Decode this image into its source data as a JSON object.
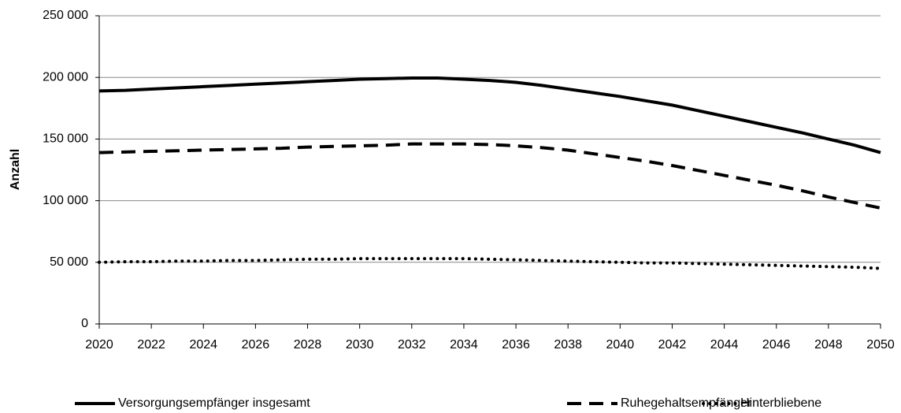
{
  "chart_data": {
    "type": "line",
    "ylabel": "Anzahl",
    "x": [
      2020,
      2021,
      2022,
      2023,
      2024,
      2025,
      2026,
      2027,
      2028,
      2029,
      2030,
      2031,
      2032,
      2033,
      2034,
      2035,
      2036,
      2037,
      2038,
      2039,
      2040,
      2041,
      2042,
      2043,
      2044,
      2045,
      2046,
      2047,
      2048,
      2049,
      2050
    ],
    "series": [
      {
        "name": "Versorgungsempfänger insgesamt",
        "color": "#000000",
        "dash": "solid",
        "values": [
          189000,
          189500,
          190500,
          191500,
          192500,
          193500,
          194500,
          195500,
          196500,
          197500,
          198500,
          199000,
          199500,
          199500,
          198500,
          197500,
          196000,
          193500,
          190500,
          187500,
          184500,
          181000,
          177500,
          173000,
          168500,
          164000,
          159500,
          155000,
          150000,
          145000,
          139000
        ]
      },
      {
        "name": "Ruhegehaltsempfänger",
        "color": "#000000",
        "dash": "dashed",
        "values": [
          139000,
          139500,
          140000,
          140500,
          141000,
          141500,
          142000,
          142500,
          143500,
          144000,
          144500,
          145000,
          146000,
          146000,
          146000,
          145500,
          144500,
          143000,
          141000,
          138000,
          135000,
          132000,
          128500,
          124500,
          120500,
          116500,
          112500,
          108000,
          103000,
          98500,
          94000
        ]
      },
      {
        "name": "Hinterbliebene",
        "color": "#000000",
        "dash": "dotted",
        "values": [
          50000,
          50500,
          50500,
          51000,
          51000,
          51500,
          51500,
          52000,
          52500,
          52500,
          53000,
          53000,
          53000,
          53000,
          53000,
          52500,
          52000,
          51500,
          51000,
          50500,
          50000,
          49500,
          49500,
          49000,
          48500,
          48000,
          47500,
          47000,
          46500,
          46000,
          45000
        ]
      }
    ],
    "xlim": [
      2020,
      2050
    ],
    "xticks": [
      2020,
      2022,
      2024,
      2026,
      2028,
      2030,
      2032,
      2034,
      2036,
      2038,
      2040,
      2042,
      2044,
      2046,
      2048,
      2050
    ],
    "ylim": [
      0,
      250000
    ],
    "yticks": [
      0,
      {
        "value": 50000,
        "label": "50 000"
      },
      {
        "value": 100000,
        "label": "100 000"
      },
      {
        "value": 150000,
        "label": "150 000"
      },
      {
        "value": 200000,
        "label": "200 000"
      },
      {
        "value": 250000,
        "label": "250 000"
      }
    ],
    "grid": true,
    "legend": "bottom"
  }
}
